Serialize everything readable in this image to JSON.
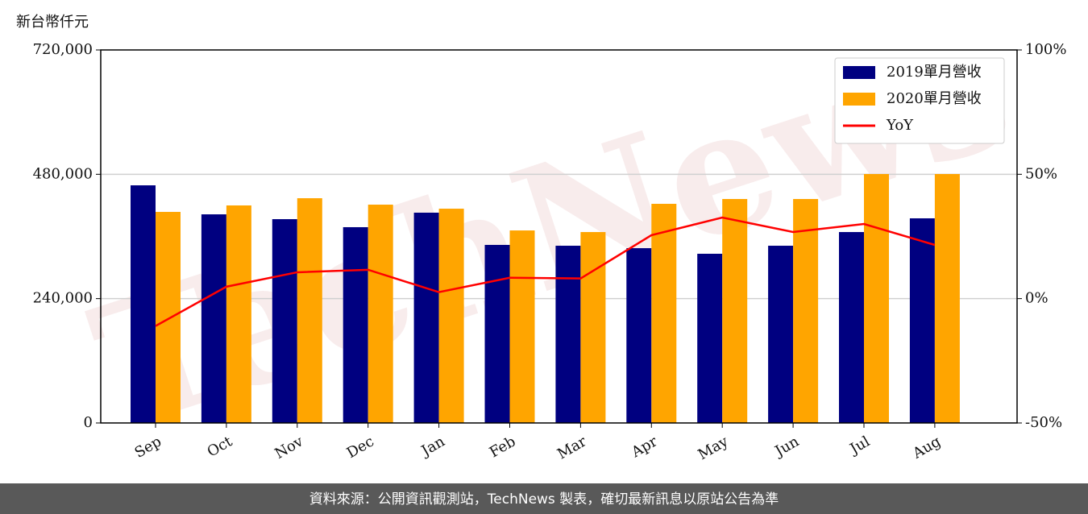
{
  "chart_data": {
    "type": "bar",
    "y_label": "新台幣仟元",
    "watermark": "TechNews",
    "footer": "資料來源：公開資訊觀測站，TechNews 製表，確切最新訊息以原站公告為準",
    "categories": [
      "Sep",
      "Oct",
      "Nov",
      "Dec",
      "Jan",
      "Feb",
      "Mar",
      "Apr",
      "May",
      "Jun",
      "Jul",
      "Aug"
    ],
    "series": [
      {
        "name": "2019單月營收",
        "color": "#000080",
        "values": [
          458700,
          402700,
          393400,
          377900,
          405900,
          343700,
          342100,
          337400,
          326600,
          342100,
          368500,
          395000
        ]
      },
      {
        "name": "2020單月營收",
        "color": "#ffa500",
        "values": [
          407400,
          419900,
          433800,
          421400,
          413600,
          371600,
          368500,
          423000,
          432300,
          432300,
          480500,
          480500
        ]
      },
      {
        "name": "YoY",
        "color": "#ff0000",
        "type": "line",
        "axis": "y2",
        "values": [
          -11,
          4.8,
          10.6,
          11.6,
          2.6,
          8.4,
          8.1,
          25.5,
          32.6,
          26.8,
          30,
          21.6
        ]
      }
    ],
    "ylim": [
      0,
      720000
    ],
    "yticks": [
      0,
      {
        "value": 240000,
        "label": "240,000"
      },
      {
        "value": 480000,
        "label": "480,000"
      },
      {
        "value": 720000,
        "label": "720,000"
      }
    ],
    "y2lim": [
      -50,
      100
    ],
    "y2ticks": [
      {
        "value": -50,
        "label": "-50%"
      },
      {
        "value": 0,
        "label": "0%"
      },
      {
        "value": 50,
        "label": "50%"
      },
      {
        "value": 100,
        "label": "100%"
      }
    ],
    "grid": true,
    "legend": "upper right"
  }
}
